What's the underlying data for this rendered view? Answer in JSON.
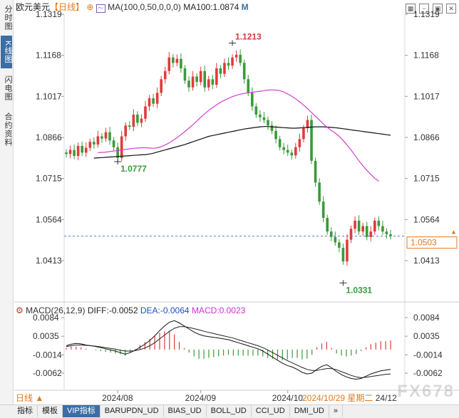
{
  "sidebar": {
    "tabs": [
      {
        "label": "分时图",
        "active": false
      },
      {
        "label": "K线图",
        "active": true
      },
      {
        "label": "闪电图",
        "active": false
      },
      {
        "label": "合约资料",
        "active": false
      }
    ]
  },
  "header": {
    "title": "欧元美元",
    "period": "【日线】",
    "ma_label": "MA(100,0,50,0,0,0)",
    "ma100_label": "MA100:1.0874",
    "window_icons": [
      "grid-icon",
      "minus-icon",
      "restore-icon",
      "close-icon"
    ]
  },
  "macd_header": {
    "name": "MACD(26,12,9)",
    "diff": "DIFF:-0.0052",
    "dea": "DEA:-0.0064",
    "macd": "MACD:0.0023"
  },
  "bottom": {
    "period_button": "日线 ▲",
    "cursor_date": "2024/10/29 星期二",
    "last_date": "24/12",
    "watermark": "FX678"
  },
  "tabs": [
    {
      "label": "指标",
      "active": false
    },
    {
      "label": "模板",
      "active": false
    },
    {
      "label": "VIP指标",
      "active": true
    },
    {
      "label": "BARUPDN_UD",
      "active": false
    },
    {
      "label": "BIAS_UD",
      "active": false
    },
    {
      "label": "BOLL_UD",
      "active": false
    },
    {
      "label": "CCI_UD",
      "active": false
    },
    {
      "label": "DMI_UD",
      "active": false
    },
    {
      "label": "»",
      "active": false
    }
  ],
  "chart_data": [
    {
      "type": "candlestick",
      "title": "欧元美元",
      "x_labels": [
        "2024/08",
        "2024/09",
        "2024/10"
      ],
      "x_label_index": [
        13,
        34,
        56
      ],
      "ylim": [
        1.0331,
        1.1319
      ],
      "y_ticks": [
        "1.1319",
        "1.1168",
        "1.1017",
        "1.0866",
        "1.0715",
        "1.0564",
        "1.0413"
      ],
      "y_tick_values": [
        1.1319,
        1.1168,
        1.1017,
        1.0866,
        1.0715,
        1.0564,
        1.0413
      ],
      "current_price": "1.0503",
      "current_value": 1.0503,
      "annotations": [
        {
          "label": "1.1213",
          "index": 42,
          "value": 1.1213
        },
        {
          "label": "1.0777",
          "index": 13,
          "value": 1.0777
        },
        {
          "label": "1.0331",
          "index": 70,
          "value": 1.0331
        }
      ],
      "closes": [
        1.0805,
        1.082,
        1.0798,
        1.0835,
        1.081,
        1.0828,
        1.085,
        1.084,
        1.087,
        1.0862,
        1.0885,
        1.0855,
        1.083,
        1.079,
        1.087,
        1.091,
        1.0905,
        1.095,
        1.092,
        1.0935,
        1.098,
        1.101,
        1.099,
        1.103,
        1.108,
        1.111,
        1.116,
        1.114,
        1.1155,
        1.112,
        1.1075,
        1.105,
        1.109,
        1.107,
        1.111,
        1.105,
        1.108,
        1.106,
        1.112,
        1.11,
        1.114,
        1.113,
        1.116,
        1.117,
        1.114,
        1.108,
        1.103,
        1.098,
        1.095,
        1.094,
        1.093,
        1.091,
        1.089,
        1.086,
        1.083,
        1.082,
        1.081,
        1.08,
        1.083,
        1.086,
        1.09,
        1.093,
        1.078,
        1.07,
        1.063,
        1.057,
        1.052,
        1.05,
        1.048,
        1.046,
        1.041,
        1.049,
        1.053,
        1.056,
        1.052,
        1.054,
        1.05,
        1.052,
        1.056,
        1.054,
        1.052,
        1.051,
        1.0503
      ],
      "ma100": [
        1.079,
        1.0791,
        1.0792,
        1.0793,
        1.0794,
        1.0795,
        1.0796,
        1.0797,
        1.0798,
        1.0799,
        1.08,
        1.0801,
        1.0802,
        1.0803,
        1.0805,
        1.0808,
        1.0812,
        1.0816,
        1.082,
        1.0824,
        1.0828,
        1.0832,
        1.0836,
        1.084,
        1.0845,
        1.085,
        1.0855,
        1.086,
        1.0865,
        1.087,
        1.0873,
        1.0876,
        1.0879,
        1.0882,
        1.0885,
        1.0888,
        1.0891,
        1.0894,
        1.0897,
        1.0899,
        1.0901,
        1.0903,
        1.0905,
        1.0906,
        1.0906,
        1.0905,
        1.0904,
        1.0903,
        1.0902,
        1.0901,
        1.09,
        1.09,
        1.0901,
        1.0902,
        1.0903,
        1.0904,
        1.0905,
        1.0905,
        1.0905,
        1.0904,
        1.0903,
        1.0902,
        1.09,
        1.0898,
        1.0896,
        1.0894,
        1.0892,
        1.089,
        1.0888,
        1.0886,
        1.0884,
        1.0882,
        1.088,
        1.0878,
        1.0876,
        1.0874
      ],
      "ma50": [
        1.081,
        1.0811,
        1.0812,
        1.0814,
        1.0816,
        1.0818,
        1.082,
        1.0822,
        1.0824,
        1.0826,
        1.0827,
        1.0828,
        1.0828,
        1.0827,
        1.0826,
        1.0828,
        1.0832,
        1.0838,
        1.0846,
        1.0855,
        1.0865,
        1.0876,
        1.0888,
        1.09,
        1.0913,
        1.0926,
        1.094,
        1.0953,
        1.0965,
        1.0976,
        1.0986,
        1.0995,
        1.1003,
        1.101,
        1.1016,
        1.1021,
        1.1025,
        1.1028,
        1.103,
        1.1032,
        1.1034,
        1.1036,
        1.1038,
        1.104,
        1.1041,
        1.104,
        1.1038,
        1.1033,
        1.1026,
        1.1018,
        1.1008,
        1.0997,
        1.0985,
        1.0972,
        1.0958,
        1.0944,
        1.093,
        1.0916,
        1.0903,
        1.0892,
        1.0882,
        1.087,
        1.0855,
        1.0838,
        1.082,
        1.08,
        1.078,
        1.0762,
        1.0745,
        1.073,
        1.0716,
        1.0705
      ]
    },
    {
      "type": "macd",
      "title": "MACD(26,12,9)",
      "ylim": [
        -0.0075,
        0.0092
      ],
      "y_ticks": [
        "0.0084",
        "0.0035",
        "-0.0014",
        "-0.0062"
      ],
      "y_tick_values": [
        0.0084,
        0.0035,
        -0.0014,
        -0.0062
      ],
      "diff": [
        0.001,
        0.0014,
        0.0016,
        0.0015,
        0.0012,
        0.001,
        0.0008,
        0.0005,
        0.0002,
        -0.0001,
        -0.0004,
        -0.0008,
        -0.0012,
        -0.0008,
        -0.0002,
        0.0006,
        0.0014,
        0.0024,
        0.0036,
        0.005,
        0.0062,
        0.0072,
        0.0076,
        0.007,
        0.0062,
        0.0054,
        0.0046,
        0.004,
        0.0036,
        0.0034,
        0.0032,
        0.003,
        0.0028,
        0.0026,
        0.0022,
        0.0018,
        0.0014,
        0.001,
        0.0006,
        0.0002,
        -0.0004,
        -0.0012,
        -0.002,
        -0.0028,
        -0.0036,
        -0.0042,
        -0.0046,
        -0.0052,
        -0.006,
        -0.0064,
        -0.0062,
        -0.0052,
        -0.0044,
        -0.004,
        -0.0048,
        -0.0058,
        -0.0066,
        -0.0072,
        -0.0076,
        -0.0078,
        -0.0076,
        -0.007,
        -0.0064,
        -0.006,
        -0.0056,
        -0.0054,
        -0.0052
      ],
      "dea": [
        0.0008,
        0.001,
        0.0012,
        0.0012,
        0.0011,
        0.001,
        0.0009,
        0.0007,
        0.0005,
        0.0003,
        0.0001,
        -0.0002,
        -0.0004,
        -0.0004,
        -0.0003,
        0.0,
        0.0004,
        0.001,
        0.0018,
        0.0028,
        0.0038,
        0.0048,
        0.0056,
        0.006,
        0.006,
        0.0058,
        0.0055,
        0.0052,
        0.0048,
        0.0045,
        0.0042,
        0.0039,
        0.0036,
        0.0033,
        0.003,
        0.0026,
        0.0022,
        0.0018,
        0.0014,
        0.001,
        0.0005,
        -0.0001,
        -0.0008,
        -0.0015,
        -0.0022,
        -0.0029,
        -0.0035,
        -0.0041,
        -0.0047,
        -0.0052,
        -0.0055,
        -0.0055,
        -0.0052,
        -0.005,
        -0.005,
        -0.0053,
        -0.0058,
        -0.0063,
        -0.0068,
        -0.0072,
        -0.0074,
        -0.0073,
        -0.0071,
        -0.0069,
        -0.0067,
        -0.0065,
        -0.0064
      ]
    }
  ]
}
